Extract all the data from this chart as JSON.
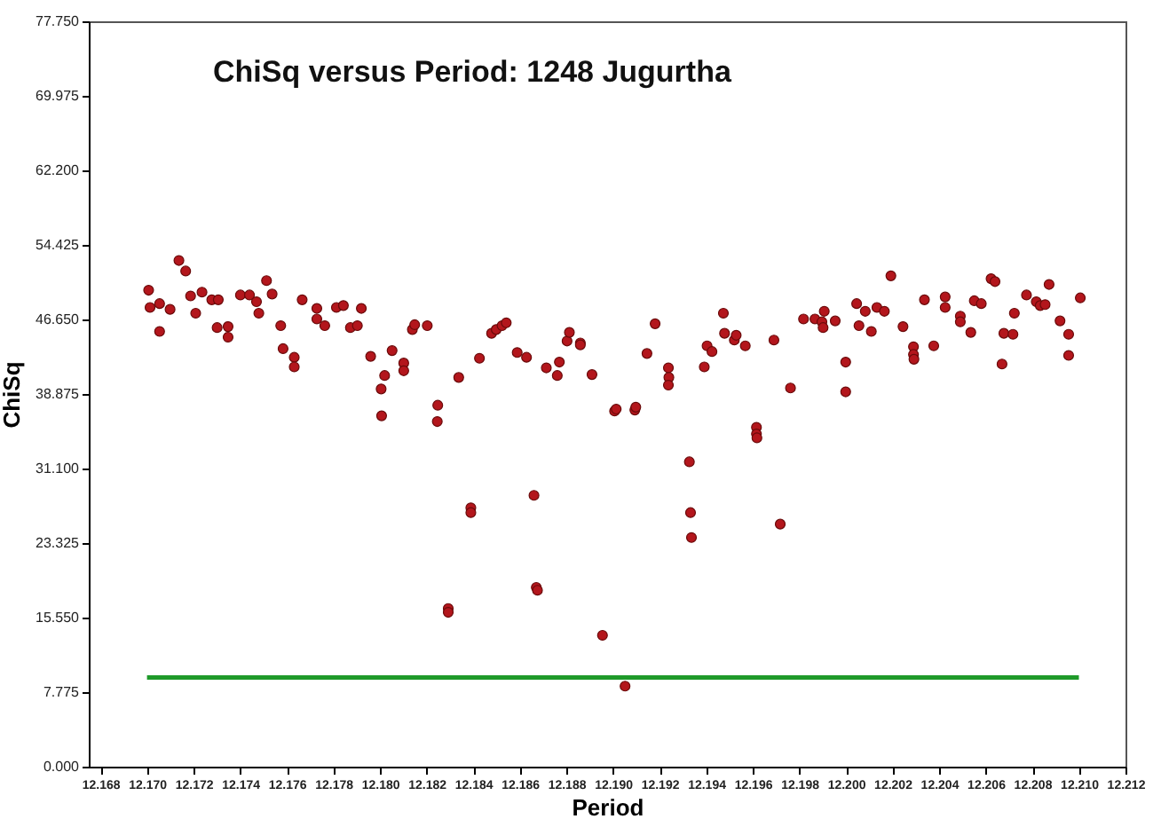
{
  "chart_data": {
    "type": "scatter",
    "title": "ChiSq versus Period:  1248 Jugurtha",
    "xlabel": "Period",
    "ylabel": "ChiSq",
    "marker": "circle",
    "grid": false,
    "xlim": [
      12.1675,
      12.212
    ],
    "xticks": [
      {
        "value": 12.168,
        "label": "12.168"
      },
      {
        "value": 12.17,
        "label": "12.170"
      },
      {
        "value": 12.172,
        "label": "12.172"
      },
      {
        "value": 12.174,
        "label": "12.174"
      },
      {
        "value": 12.176,
        "label": "12.176"
      },
      {
        "value": 12.178,
        "label": "12.178"
      },
      {
        "value": 12.18,
        "label": "12.180"
      },
      {
        "value": 12.182,
        "label": "12.182"
      },
      {
        "value": 12.184,
        "label": "12.184"
      },
      {
        "value": 12.186,
        "label": "12.186"
      },
      {
        "value": 12.188,
        "label": "12.188"
      },
      {
        "value": 12.19,
        "label": "12.190"
      },
      {
        "value": 12.192,
        "label": "12.192"
      },
      {
        "value": 12.194,
        "label": "12.194"
      },
      {
        "value": 12.196,
        "label": "12.196"
      },
      {
        "value": 12.198,
        "label": "12.198"
      },
      {
        "value": 12.2,
        "label": "12.200"
      },
      {
        "value": 12.202,
        "label": "12.202"
      },
      {
        "value": 12.204,
        "label": "12.204"
      },
      {
        "value": 12.206,
        "label": "12.206"
      },
      {
        "value": 12.208,
        "label": "12.208"
      },
      {
        "value": 12.21,
        "label": "12.210"
      },
      {
        "value": 12.212,
        "label": "12.212"
      }
    ],
    "ylim": [
      0,
      77.75
    ],
    "yticks": [
      {
        "value": 0,
        "label": "0.000"
      },
      {
        "value": 7.775,
        "label": "7.775"
      },
      {
        "value": 15.55,
        "label": "15.550"
      },
      {
        "value": 23.325,
        "label": "23.325"
      },
      {
        "value": 31.1,
        "label": "31.100"
      },
      {
        "value": 38.875,
        "label": "38.875"
      },
      {
        "value": 46.65,
        "label": "46.650"
      },
      {
        "value": 54.425,
        "label": "54.425"
      },
      {
        "value": 62.2,
        "label": "62.200"
      },
      {
        "value": 69.975,
        "label": "69.975"
      },
      {
        "value": 77.75,
        "label": "77.750"
      }
    ],
    "series": [
      {
        "color": "#b3161c",
        "x": [
          12.17007,
          12.17013,
          12.17054,
          12.17054,
          12.17099,
          12.17137,
          12.17166,
          12.17187,
          12.17209,
          12.17236,
          12.17278,
          12.17306,
          12.17301,
          12.17348,
          12.17348,
          12.17401,
          12.1744,
          12.1747,
          12.1748,
          12.17513,
          12.17537,
          12.17574,
          12.17584,
          12.17632,
          12.17632,
          12.17666,
          12.17729,
          12.17729,
          12.17763,
          12.17813,
          12.17843,
          12.17873,
          12.17903,
          12.1792,
          12.1796,
          12.18005,
          12.18007,
          12.1802,
          12.18052,
          12.18102,
          12.18102,
          12.18139,
          12.18149,
          12.18203,
          12.18248,
          12.18246,
          12.18293,
          12.18293,
          12.18338,
          12.1839,
          12.1839,
          12.18427,
          12.18479,
          12.18499,
          12.18524,
          12.18542,
          12.18589,
          12.18629,
          12.18661,
          12.18671,
          12.18676,
          12.18714,
          12.18761,
          12.1877,
          12.18803,
          12.18813,
          12.1886,
          12.1886,
          12.1891,
          12.18955,
          12.19007,
          12.19014,
          12.19052,
          12.19094,
          12.19098,
          12.19146,
          12.19181,
          12.19238,
          12.1924,
          12.19238,
          12.19328,
          12.19333,
          12.19337,
          12.19392,
          12.19404,
          12.19425,
          12.19474,
          12.19479,
          12.19521,
          12.19529,
          12.19568,
          12.19616,
          12.19616,
          12.19618,
          12.19691,
          12.19718,
          12.19762,
          12.19818,
          12.19867,
          12.19897,
          12.19907,
          12.19902,
          12.19954,
          12.19999,
          12.19999,
          12.20046,
          12.20056,
          12.20083,
          12.20109,
          12.20133,
          12.20165,
          12.20193,
          12.20245,
          12.2029,
          12.2029,
          12.20292,
          12.20337,
          12.20377,
          12.20426,
          12.20426,
          12.20491,
          12.20491,
          12.20536,
          12.20551,
          12.20581,
          12.20623,
          12.2064,
          12.2067,
          12.20678,
          12.20717,
          12.20723,
          12.20775,
          12.20817,
          12.20834,
          12.20855,
          12.20872,
          12.20919,
          12.20956,
          12.20956,
          12.21006
        ],
        "values": [
          49.7,
          47.9,
          48.3,
          45.4,
          47.7,
          52.8,
          51.7,
          49.1,
          47.3,
          49.5,
          48.7,
          48.7,
          45.8,
          45.9,
          44.8,
          49.2,
          49.2,
          48.5,
          47.3,
          50.7,
          49.3,
          46.0,
          43.6,
          42.7,
          41.7,
          48.7,
          47.8,
          46.7,
          46.0,
          47.9,
          48.1,
          45.8,
          46.0,
          47.8,
          42.8,
          39.4,
          36.6,
          40.8,
          43.4,
          42.1,
          41.3,
          45.6,
          46.1,
          46.0,
          37.7,
          36.0,
          16.5,
          16.1,
          40.6,
          27.0,
          26.5,
          42.6,
          45.2,
          45.6,
          46.0,
          46.3,
          43.2,
          42.7,
          28.3,
          18.7,
          18.4,
          41.6,
          40.8,
          42.2,
          44.4,
          45.3,
          44.2,
          44.0,
          40.9,
          13.7,
          37.1,
          37.3,
          8.4,
          37.2,
          37.5,
          43.1,
          46.2,
          41.6,
          40.6,
          39.8,
          31.8,
          26.5,
          23.9,
          41.7,
          43.9,
          43.3,
          47.3,
          45.2,
          44.5,
          45.0,
          43.9,
          35.4,
          34.7,
          34.3,
          44.5,
          25.3,
          39.5,
          46.7,
          46.7,
          46.4,
          47.5,
          45.8,
          46.5,
          42.2,
          39.1,
          48.3,
          46.0,
          47.5,
          45.4,
          47.9,
          47.5,
          51.2,
          45.9,
          43.8,
          43.0,
          42.5,
          48.7,
          43.9,
          49.0,
          47.9,
          47.0,
          46.4,
          45.3,
          48.6,
          48.3,
          50.9,
          50.6,
          42.0,
          45.2,
          45.1,
          47.3,
          49.2,
          48.5,
          48.1,
          48.2,
          50.3,
          46.5,
          45.1,
          42.9,
          48.9
        ]
      },
      {
        "type": "line",
        "marker": "none",
        "color": "#1f9a2a",
        "x": [
          12.17,
          12.21
        ],
        "values": [
          9.3,
          9.3
        ]
      }
    ]
  }
}
